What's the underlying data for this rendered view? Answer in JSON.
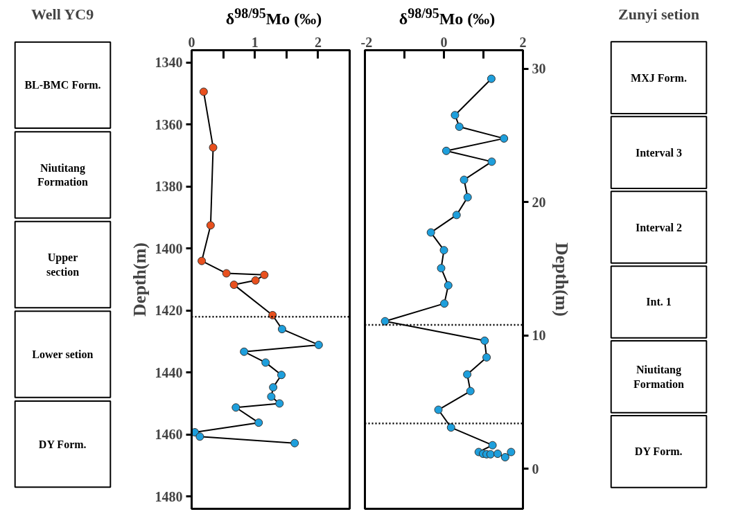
{
  "chart_data": [
    {
      "type": "other",
      "title": "Well YC9",
      "annotations": [
        "BL-BMC Form.",
        "Niutitang Formation",
        "Upper section",
        "Lower setion",
        "DY Form."
      ]
    },
    {
      "type": "line",
      "orientation": "horizontal",
      "xlabel": "δ$^{98/95}$Mo (‰)",
      "ylabel": "Depth(m)",
      "xlim": [
        0,
        2.5
      ],
      "xticks": [
        0,
        {
          "value": 0.5,
          "label": null
        },
        1,
        {
          "value": 1.5,
          "label": null
        },
        2
      ],
      "ylim": [
        1484,
        1336
      ],
      "yticks": [
        1340,
        1360,
        1380,
        1400,
        1420,
        1440,
        1460,
        1480
      ],
      "marker": "circle",
      "ref_lines": [
        {
          "axis": "y",
          "value": 1422,
          "color": "#000000",
          "line_style": "dotted"
        }
      ],
      "series": [
        {
          "color": "#000000",
          "x": [
            1349.4,
            1367.4,
            1392.5,
            1404.0,
            1408.0,
            1408.5,
            1410.3,
            1411.7,
            1421.5,
            1426.0,
            1431.1,
            1433.3,
            1436.8,
            1440.8,
            1444.8,
            1447.8,
            1450.0,
            1451.3,
            1456.2,
            1459.3,
            1460.7,
            1462.8
          ],
          "values": [
            0.19,
            0.34,
            0.3,
            0.16,
            0.55,
            1.15,
            1.01,
            0.67,
            1.28,
            1.43,
            2.01,
            0.83,
            1.17,
            1.42,
            1.29,
            1.26,
            1.39,
            0.7,
            1.06,
            0.05,
            0.13,
            1.63
          ],
          "colors": [
            "#e8501e",
            "#e8501e",
            "#e8501e",
            "#e8501e",
            "#e8501e",
            "#e8501e",
            "#e8501e",
            "#e8501e",
            "#e8501e",
            "#1e9fdc",
            "#1e9fdc",
            "#1e9fdc",
            "#1e9fdc",
            "#1e9fdc",
            "#1e9fdc",
            "#1e9fdc",
            "#1e9fdc",
            "#1e9fdc",
            "#1e9fdc",
            "#1e9fdc",
            "#1e9fdc",
            "#1e9fdc"
          ]
        }
      ]
    },
    {
      "type": "line",
      "orientation": "horizontal",
      "xlabel": "δ$^{98/95}$Mo (‰)",
      "ylabel": "Depth(m)",
      "xlim": [
        -2,
        2
      ],
      "xticks": [
        -2,
        {
          "value": -1,
          "label": null
        },
        0,
        {
          "value": 1,
          "label": null
        },
        2
      ],
      "ylim": [
        -3,
        31.4
      ],
      "yticks": [
        0,
        10,
        20,
        30
      ],
      "marker": "circle",
      "ref_lines": [
        {
          "axis": "y",
          "value": 10.8,
          "color": "#000000",
          "line_style": "dotted"
        },
        {
          "axis": "y",
          "value": 3.4,
          "color": "#000000",
          "line_style": "dotted"
        }
      ],
      "series": [
        {
          "color": "#000000",
          "x": [
            29.26,
            26.53,
            25.66,
            24.78,
            23.85,
            23.04,
            21.68,
            20.37,
            19.04,
            17.73,
            16.4,
            15.05,
            13.76,
            12.4,
            11.07,
            9.61,
            8.36,
            7.08,
            5.83,
            4.43,
            3.1,
            1.77,
            1.26,
            1.13,
            1.09,
            1.09,
            1.13,
            0.87,
            1.26
          ],
          "values": [
            1.2,
            0.28,
            0.39,
            1.52,
            0.06,
            1.21,
            0.51,
            0.6,
            0.32,
            -0.33,
            0.0,
            -0.07,
            0.11,
            0.01,
            -1.49,
            1.03,
            1.08,
            0.59,
            0.67,
            -0.14,
            0.18,
            1.23,
            0.88,
            0.99,
            1.08,
            1.18,
            1.36,
            1.55,
            1.7
          ],
          "colors": [
            "#1e9fdc",
            "#1e9fdc",
            "#1e9fdc",
            "#1e9fdc",
            "#1e9fdc",
            "#1e9fdc",
            "#1e9fdc",
            "#1e9fdc",
            "#1e9fdc",
            "#1e9fdc",
            "#1e9fdc",
            "#1e9fdc",
            "#1e9fdc",
            "#1e9fdc",
            "#1e9fdc",
            "#1e9fdc",
            "#1e9fdc",
            "#1e9fdc",
            "#1e9fdc",
            "#1e9fdc",
            "#1e9fdc",
            "#1e9fdc",
            "#1e9fdc",
            "#1e9fdc",
            "#1e9fdc",
            "#1e9fdc",
            "#1e9fdc",
            "#1e9fdc",
            "#1e9fdc"
          ]
        }
      ]
    },
    {
      "type": "other",
      "title": "Zunyi setion",
      "annotations": [
        "MXJ Form.",
        "Interval 3",
        "Interval 2",
        "Int. 1",
        "Niutitang Formation",
        "DY Form."
      ]
    }
  ]
}
